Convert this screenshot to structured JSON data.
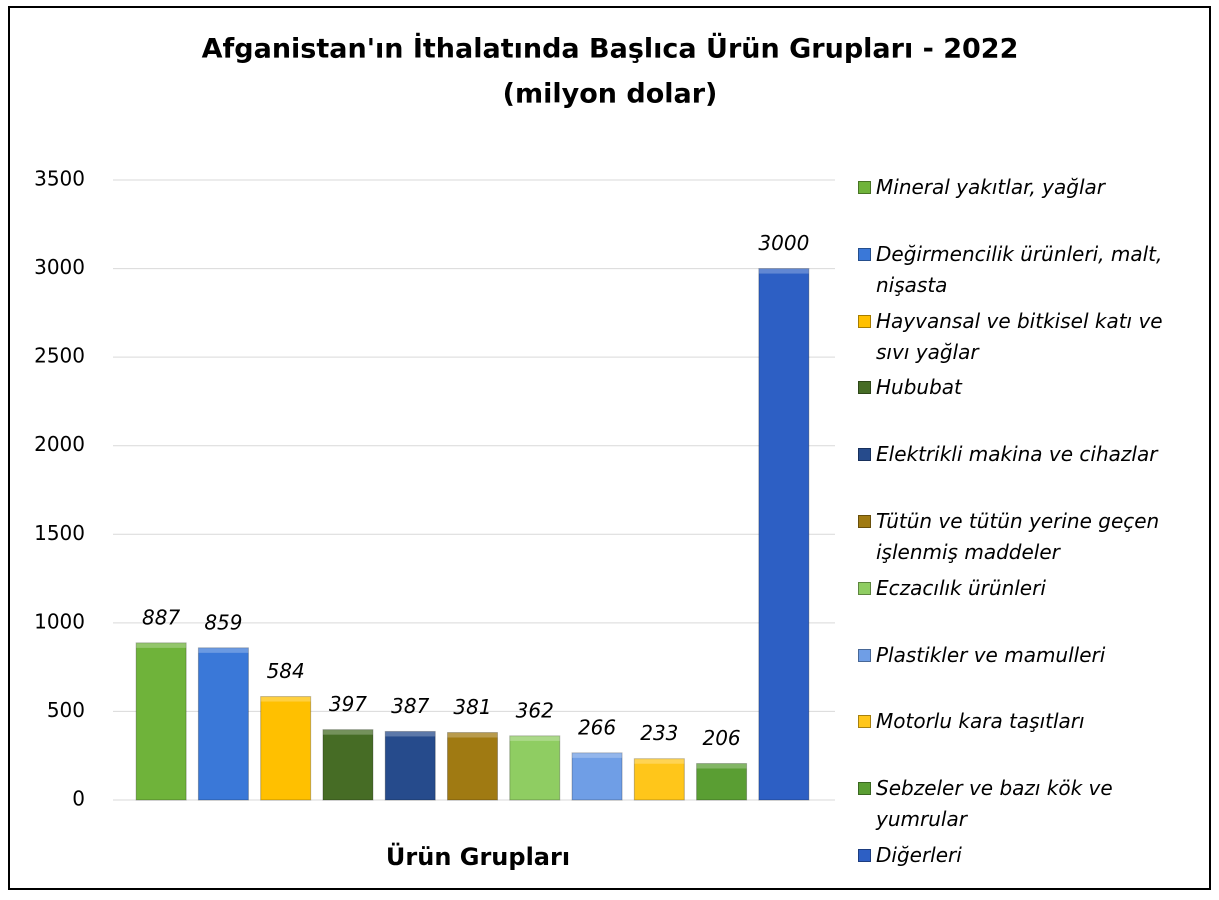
{
  "chart_data": {
    "type": "bar",
    "title": "Afganistan'ın İthalatında Başlıca Ürün Grupları - 2022",
    "subtitle": "(milyon dolar)",
    "x_label": "Ürün Grupları",
    "categories": [
      "Mineral yakıtlar, yağlar",
      "Değirmencilik ürünleri, malt, nişasta",
      "Hayvansal ve bitkisel katı ve sıvı yağlar",
      "Hububat",
      "Elektrikli makina ve cihazlar",
      "Tütün ve tütün yerine geçen işlenmiş maddeler",
      "Eczacılık ürünleri",
      "Plastikler ve mamulleri",
      "Motorlu kara taşıtları",
      "Sebzeler ve bazı kök ve yumrular",
      "Diğerleri"
    ],
    "values": [
      887,
      859,
      584,
      397,
      387,
      381,
      362,
      266,
      233,
      206,
      3000
    ],
    "colors": [
      "#6fb33a",
      "#3a78d8",
      "#ffc000",
      "#466c25",
      "#264b8c",
      "#a07a12",
      "#8fcd62",
      "#6f9ee6",
      "#ffc61a",
      "#5a9e33",
      "#2d5fc4"
    ],
    "ylim": [
      0,
      3500
    ],
    "yticks": [
      0,
      500,
      1000,
      1500,
      2000,
      2500,
      3000,
      3500
    ],
    "grid": true,
    "legend": "right"
  }
}
